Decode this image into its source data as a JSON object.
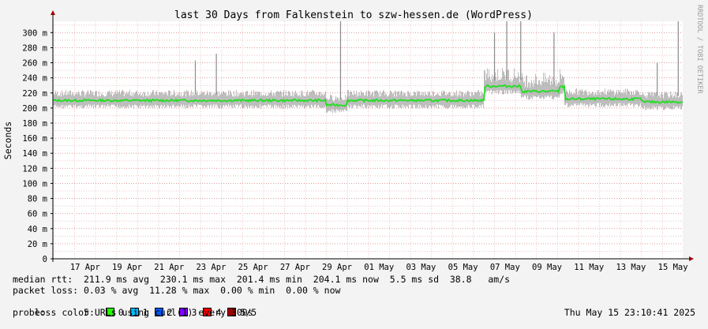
{
  "chart_data": {
    "type": "line",
    "title": "last 30 Days from Falkenstein to szw-hessen.de (WordPress)",
    "ylabel": "Seconds",
    "ylim": [
      0,
      315
    ],
    "y_ticks": [
      0,
      20,
      40,
      60,
      80,
      100,
      120,
      140,
      160,
      180,
      200,
      220,
      240,
      260,
      280,
      300
    ],
    "y_tick_labels": [
      "0",
      "20 m",
      "40 m",
      "60 m",
      "80 m",
      "100 m",
      "120 m",
      "140 m",
      "160 m",
      "180 m",
      "200 m",
      "220 m",
      "240 m",
      "260 m",
      "280 m",
      "300 m"
    ],
    "x_ticks": [
      "17 Apr",
      "19 Apr",
      "21 Apr",
      "23 Apr",
      "25 Apr",
      "27 Apr",
      "29 Apr",
      "01 May",
      "03 May",
      "05 May",
      "07 May",
      "09 May",
      "11 May",
      "13 May",
      "15 May"
    ],
    "xlim": [
      "2025-04-15T23:10",
      "2025-05-15T23:10"
    ],
    "grid": true,
    "series_color": "#22dd22",
    "smoke_color": "#888888",
    "median_segments": [
      {
        "from": "2025-04-15T23:10",
        "to": "2025-04-28T23:00",
        "median": 210
      },
      {
        "from": "2025-04-28T23:00",
        "to": "2025-04-30T00:00",
        "median": 204
      },
      {
        "from": "2025-04-30T00:00",
        "to": "2025-05-06T12:00",
        "median": 210
      },
      {
        "from": "2025-05-06T12:00",
        "to": "2025-05-08T06:00",
        "median": 229
      },
      {
        "from": "2025-05-08T06:00",
        "to": "2025-05-10T02:00",
        "median": 222
      },
      {
        "from": "2025-05-10T02:00",
        "to": "2025-05-10T08:00",
        "median": 228
      },
      {
        "from": "2025-05-10T08:00",
        "to": "2025-05-14T00:00",
        "median": 212
      },
      {
        "from": "2025-05-14T00:00",
        "to": "2025-05-15T23:10",
        "median": 208
      }
    ],
    "spikes": [
      {
        "at": "2025-04-22T18:00",
        "value": 263
      },
      {
        "at": "2025-04-23T18:00",
        "value": 272
      },
      {
        "at": "2025-04-29T16:00",
        "value": 315
      },
      {
        "at": "2025-05-07T00:00",
        "value": 300
      },
      {
        "at": "2025-05-07T14:00",
        "value": 315
      },
      {
        "at": "2025-05-08T06:00",
        "value": 315
      },
      {
        "at": "2025-05-09T20:00",
        "value": 300
      },
      {
        "at": "2025-05-14T18:00",
        "value": 260
      },
      {
        "at": "2025-05-15T18:00",
        "value": 315
      }
    ]
  },
  "watermark": "RRDTOOL / TOBI OETIKER",
  "stats": {
    "median_rtt": "median rtt:  211.9 ms avg  230.1 ms max  201.4 ms min  204.1 ms now  5.5 ms sd  38.8   am/s",
    "packet_loss": "packet loss: 0.03 % avg  11.28 % max  0.00 % min  0.00 % now",
    "loss_color_label": "loss color:",
    "probe": "probe:       5 URLs using curl(1) every 300s",
    "timestamp": "Thu May 15 23:10:41 2025"
  },
  "loss_colors": [
    {
      "label": "0",
      "color": "#26ff00"
    },
    {
      "label": "1",
      "color": "#00b8ff"
    },
    {
      "label": "2",
      "color": "#0059ff"
    },
    {
      "label": "3",
      "color": "#7e00ff"
    },
    {
      "label": "4",
      "color": "#ff0000"
    },
    {
      "label": "5/5",
      "color": "#a10000"
    }
  ]
}
